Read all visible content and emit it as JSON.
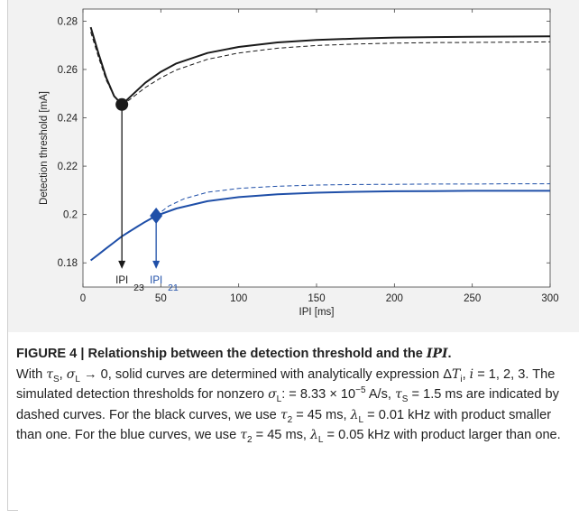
{
  "chart_data": {
    "type": "line",
    "xlabel": "IPI [ms]",
    "ylabel": "Detection threshold [mA]",
    "xlim": [
      0,
      300
    ],
    "ylim": [
      0.17,
      0.285
    ],
    "xticks": [
      0,
      50,
      100,
      150,
      200,
      250,
      300
    ],
    "yticks": [
      0.18,
      0.2,
      0.22,
      0.24,
      0.26,
      0.28
    ],
    "ytick_labels": [
      "0.18",
      "0.2",
      "0.22",
      "0.24",
      "0.26",
      "0.28"
    ],
    "grid": false,
    "series": [
      {
        "color": "#1a1a1a",
        "style": "solid",
        "x": [
          5,
          10,
          15,
          20,
          25,
          30,
          40,
          50,
          60,
          80,
          100,
          125,
          150,
          175,
          200,
          225,
          250,
          275,
          300
        ],
        "y": [
          0.2775,
          0.2665,
          0.2565,
          0.249,
          0.2455,
          0.2485,
          0.2545,
          0.259,
          0.2625,
          0.2668,
          0.2693,
          0.2712,
          0.2722,
          0.2728,
          0.2732,
          0.2734,
          0.2735,
          0.2736,
          0.2737
        ]
      },
      {
        "color": "#1a1a1a",
        "style": "dashed",
        "x": [
          5,
          10,
          15,
          20,
          25,
          30,
          40,
          50,
          60,
          80,
          100,
          125,
          150,
          175,
          200,
          225,
          250,
          275,
          300
        ],
        "y": [
          0.2755,
          0.265,
          0.2555,
          0.249,
          0.2455,
          0.2475,
          0.2525,
          0.2565,
          0.2598,
          0.2642,
          0.2668,
          0.2688,
          0.2699,
          0.2705,
          0.2709,
          0.2711,
          0.2712,
          0.2713,
          0.2714
        ]
      },
      {
        "color": "#1f4fa8",
        "style": "solid",
        "x": [
          5,
          10,
          15,
          20,
          25,
          30,
          35,
          40,
          47,
          60,
          80,
          100,
          125,
          150,
          175,
          200,
          225,
          250,
          275,
          300
        ],
        "y": [
          0.181,
          0.1835,
          0.186,
          0.1885,
          0.191,
          0.193,
          0.195,
          0.197,
          0.1995,
          0.2025,
          0.2055,
          0.2072,
          0.2084,
          0.209,
          0.2094,
          0.2096,
          0.2097,
          0.2098,
          0.2098,
          0.2098
        ]
      },
      {
        "color": "#1f4fa8",
        "style": "dashed",
        "x": [
          47,
          55,
          65,
          80,
          100,
          125,
          150,
          175,
          200,
          225,
          250,
          275,
          300
        ],
        "y": [
          0.1995,
          0.2035,
          0.2065,
          0.2092,
          0.2108,
          0.2117,
          0.2122,
          0.2124,
          0.2125,
          0.2126,
          0.2126,
          0.2127,
          0.2127
        ]
      }
    ],
    "markers": [
      {
        "shape": "circle",
        "x": 25,
        "y": 0.2455,
        "color": "#1a1a1a"
      },
      {
        "shape": "diamond",
        "x": 47,
        "y": 0.1995,
        "color": "#1f4fa8"
      }
    ],
    "arrows": [
      {
        "x": 25,
        "y_from": 0.2455,
        "y_to": 0.1775,
        "color": "#1a1a1a",
        "label": "IPI",
        "label_sub": "23"
      },
      {
        "x": 47,
        "y_from": 0.1995,
        "y_to": 0.1775,
        "color": "#1f4fa8",
        "label": "IPI",
        "label_sub": "21"
      }
    ]
  },
  "caption": {
    "heading": "FIGURE 4 | Relationship between the detection threshold and the ",
    "heading_em": "IPI",
    "heading_end": "."
  }
}
